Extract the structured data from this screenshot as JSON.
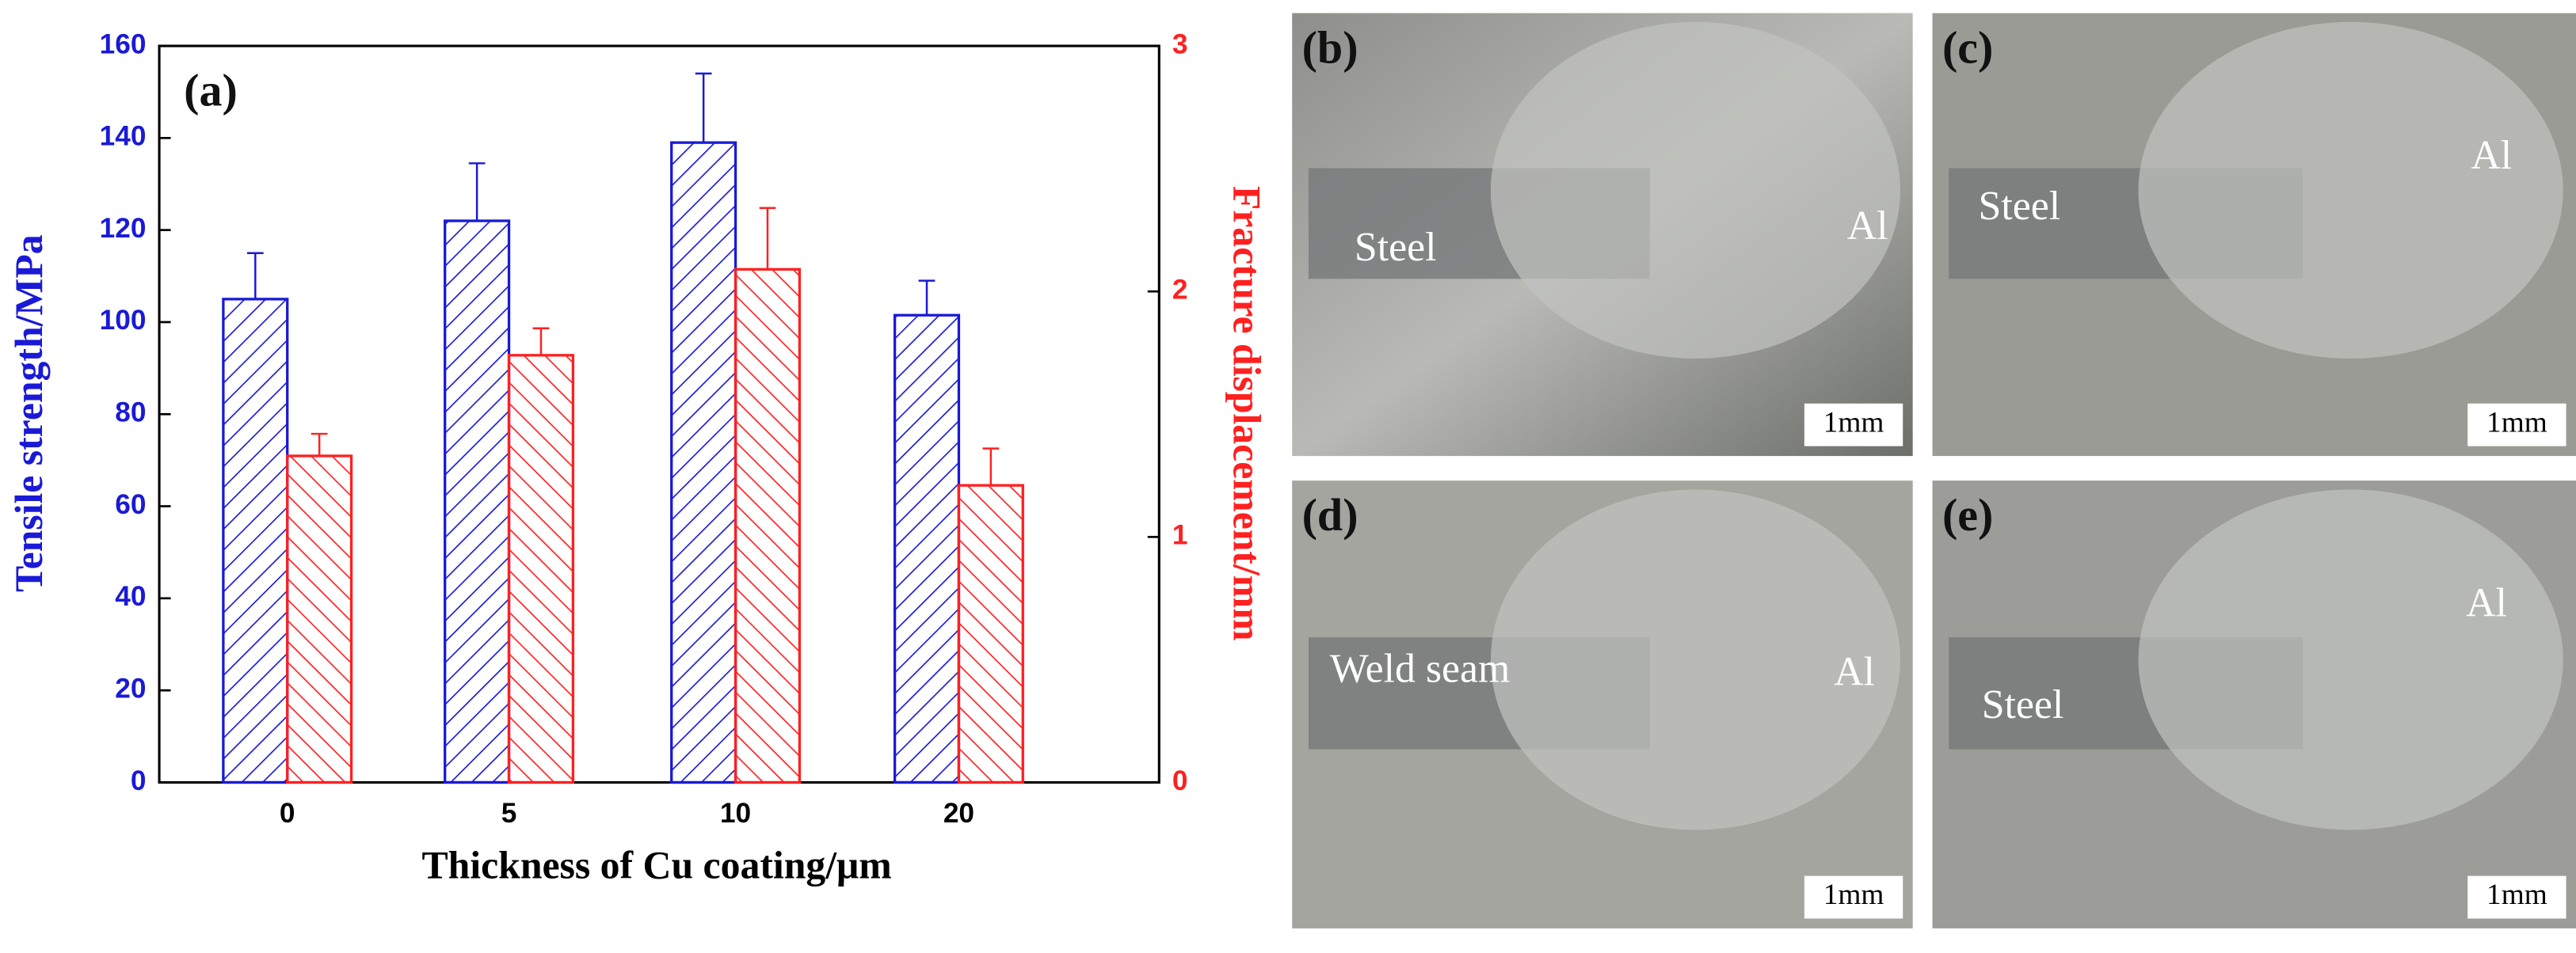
{
  "chart_data": {
    "type": "bar",
    "annotation": "(a)",
    "x_label": "Thickness of Cu coating/μm",
    "y_label": "Tensile strength/MPa",
    "y2_label": "Fracture displacement/mm",
    "categories": [
      "0",
      "5",
      "10",
      "20"
    ],
    "series": [
      {
        "name": "Tensile strength/MPa",
        "color": "#1a1ad6",
        "values": [
          105,
          122,
          139,
          101.5
        ],
        "errors": [
          10,
          12.5,
          15,
          7.5
        ]
      },
      {
        "name": "Fracture displacement/mm",
        "color": "#ff2020",
        "axis": "y2",
        "values": [
          1.33,
          1.74,
          2.09,
          1.21
        ],
        "errors": [
          0.09,
          0.11,
          0.25,
          0.15
        ]
      }
    ],
    "ylim": [
      0,
      160
    ],
    "yticks": [
      0,
      20,
      40,
      60,
      80,
      100,
      120,
      140,
      160
    ],
    "y2lim": [
      0,
      3
    ],
    "y2ticks": [
      0,
      1,
      2,
      3
    ]
  },
  "panels": [
    {
      "label": "(b)",
      "texts": [
        "Steel",
        "Al"
      ],
      "scale": "1mm"
    },
    {
      "label": "(c)",
      "texts": [
        "Steel",
        "Al"
      ],
      "scale": "1mm"
    },
    {
      "label": "(d)",
      "texts": [
        "Weld seam",
        "Al"
      ],
      "scale": "1mm"
    },
    {
      "label": "(e)",
      "texts": [
        "Steel",
        "Al"
      ],
      "scale": "1mm"
    }
  ]
}
